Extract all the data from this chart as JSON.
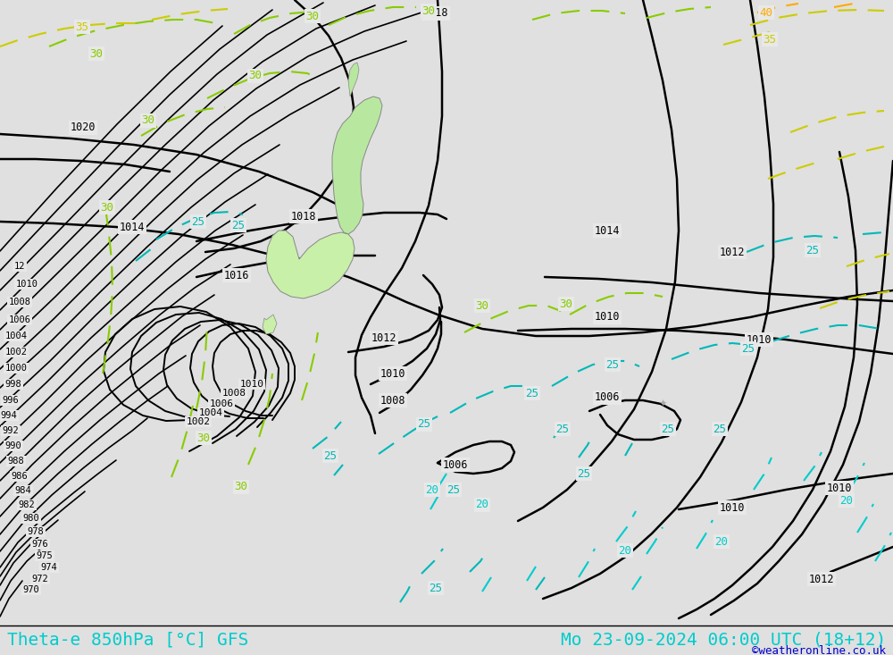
{
  "title_left": "Theta-e 850hPa [°C] GFS",
  "title_right": "Mo 23-09-2024 06:00 UTC (18+12)",
  "copyright": "©weatheronline.co.uk",
  "bg_color": "#e0e0e0",
  "map_bg_color": "#e8e8e8",
  "pressure_color": "#000000",
  "theta_colors": {
    "20": "#00cccc",
    "25": "#00b8b8",
    "30": "#88cc00",
    "35": "#cccc00",
    "40": "#ffaa00"
  },
  "title_color": "#00cccc",
  "title_fontsize": 14,
  "copyright_color": "#0000cc",
  "copyright_fontsize": 9,
  "land_green": "#b8e8a0",
  "land_green2": "#c8f0a8"
}
